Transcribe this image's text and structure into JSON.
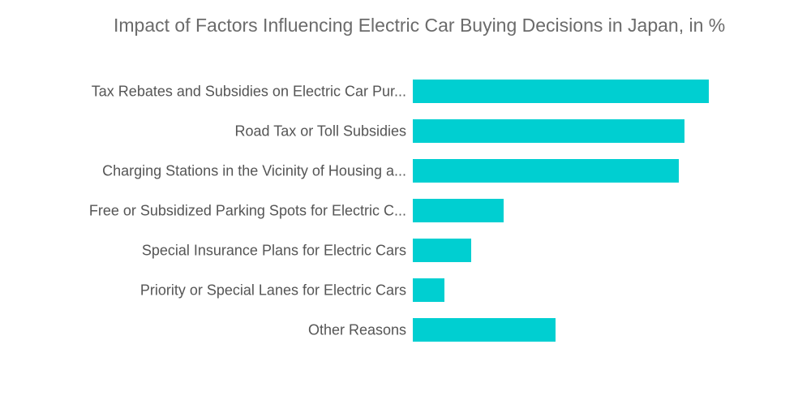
{
  "chart_data": {
    "type": "bar",
    "orientation": "horizontal",
    "title": "Impact of Factors Influencing Electric Car Buying Decisions in Japan, in %",
    "categories": [
      "Tax Rebates and Subsidies on Electric Car Pur...",
      "Road Tax or Toll Subsidies",
      "Charging Stations in the Vicinity of Housing a...",
      "Free or Subsidized Parking Spots for Electric C...",
      "Special Insurance Plans for Electric Cars",
      "Priority or Special Lanes for Electric Cars",
      "Other Reasons"
    ],
    "values": [
      36.5,
      33.5,
      32.8,
      11.2,
      7.2,
      3.9,
      17.6
    ],
    "xlim": [
      0,
      40
    ],
    "xlabel": "",
    "ylabel": "",
    "grid": false,
    "legend": "none",
    "bar_color": "#00cfd1"
  }
}
